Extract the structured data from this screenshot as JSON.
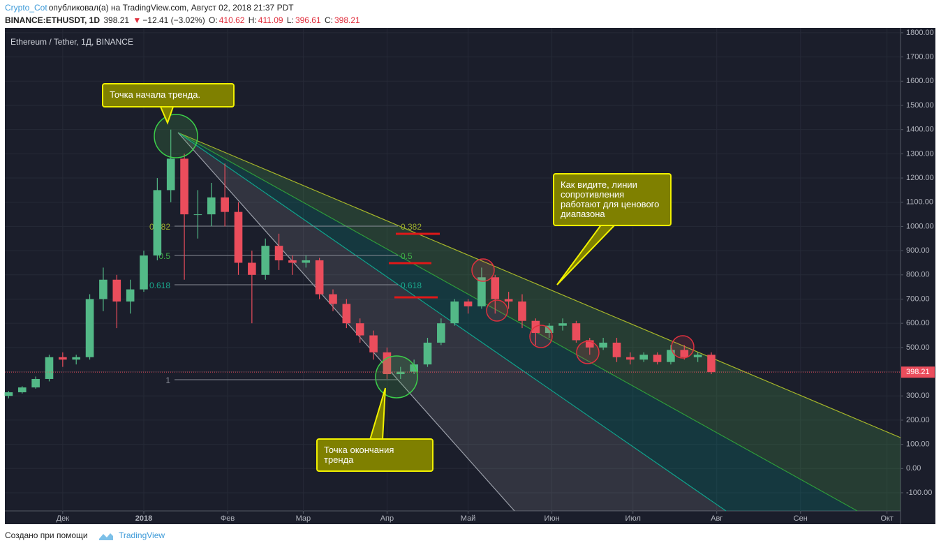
{
  "header": {
    "author": "Crypto_Cot",
    "published": "опубликовал(а) на TradingView.com, Август 02, 2018 21:37 PDT",
    "symbol": "BINANCE:ETHUSDT, 1D",
    "price": "398.21",
    "change": "−12.41 (−3.02%)",
    "ohlc": [
      {
        "label": "O:",
        "value": "410.62"
      },
      {
        "label": "H:",
        "value": "411.09"
      },
      {
        "label": "L:",
        "value": "396.61"
      },
      {
        "label": "C:",
        "value": "398.21"
      }
    ]
  },
  "chart_data": {
    "type": "candlestick",
    "title": "Ethereum / Tether, 1Д, BINANCE",
    "x": [
      -50,
      -45,
      -40,
      -35,
      -30,
      -25,
      -20,
      -15,
      -10,
      -5,
      0,
      5,
      10,
      15,
      20,
      25,
      30,
      35,
      40,
      45,
      50,
      55,
      60,
      65,
      70,
      75,
      80,
      85,
      90,
      95,
      100,
      105,
      110,
      115,
      120,
      125,
      130,
      135,
      140,
      145,
      150,
      155,
      160,
      165,
      170,
      175,
      180,
      185,
      190,
      195,
      200,
      205,
      210
    ],
    "open": [
      300,
      315,
      335,
      370,
      460,
      450,
      460,
      700,
      780,
      690,
      740,
      880,
      1150,
      1280,
      1050,
      1050,
      1120,
      1060,
      850,
      800,
      920,
      860,
      850,
      860,
      720,
      680,
      600,
      550,
      480,
      390,
      400,
      430,
      520,
      600,
      690,
      670,
      790,
      700,
      690,
      610,
      560,
      590,
      600,
      530,
      500,
      520,
      460,
      450,
      470,
      440,
      490,
      460,
      470
    ],
    "high": [
      320,
      340,
      380,
      470,
      480,
      470,
      720,
      830,
      800,
      780,
      900,
      1200,
      1400,
      1300,
      1150,
      1180,
      1260,
      1100,
      900,
      950,
      970,
      880,
      880,
      870,
      740,
      700,
      620,
      570,
      500,
      420,
      450,
      540,
      620,
      700,
      700,
      830,
      800,
      730,
      720,
      620,
      600,
      620,
      610,
      540,
      540,
      540,
      480,
      480,
      480,
      510,
      510,
      480,
      480
    ],
    "low": [
      290,
      310,
      330,
      360,
      420,
      430,
      450,
      650,
      580,
      640,
      730,
      860,
      1100,
      780,
      950,
      1000,
      1000,
      800,
      600,
      780,
      820,
      800,
      830,
      700,
      650,
      580,
      520,
      450,
      370,
      370,
      390,
      420,
      510,
      590,
      640,
      660,
      640,
      660,
      580,
      510,
      540,
      570,
      520,
      470,
      490,
      440,
      430,
      440,
      430,
      430,
      450,
      440,
      390
    ],
    "close": [
      315,
      335,
      370,
      460,
      450,
      460,
      700,
      780,
      690,
      740,
      880,
      1150,
      1280,
      1050,
      1050,
      1120,
      1060,
      850,
      800,
      920,
      860,
      850,
      860,
      720,
      680,
      600,
      550,
      480,
      390,
      400,
      430,
      520,
      600,
      690,
      670,
      790,
      700,
      690,
      610,
      560,
      590,
      600,
      530,
      500,
      520,
      460,
      450,
      470,
      440,
      490,
      460,
      470,
      398.21
    ],
    "up_color": "#53b987",
    "down_color": "#eb4d5c",
    "xlim": [
      -51.4,
      280
    ],
    "xticks": [
      {
        "value": -30,
        "label": "Дек"
      },
      {
        "value": 0,
        "label": "2018"
      },
      {
        "value": 31,
        "label": "Фев"
      },
      {
        "value": 59,
        "label": "Мар"
      },
      {
        "value": 90,
        "label": "Апр"
      },
      {
        "value": 120,
        "label": "Май"
      },
      {
        "value": 151,
        "label": "Июн"
      },
      {
        "value": 181,
        "label": "Июл"
      },
      {
        "value": 212,
        "label": "Авг"
      },
      {
        "value": 243,
        "label": "Сен"
      },
      {
        "value": 275,
        "label": "Окт"
      }
    ],
    "ylim": [
      -175,
      1820
    ],
    "yticks": [
      {
        "value": 1800,
        "label": "1800.00"
      },
      {
        "value": 1700,
        "label": "1700.00"
      },
      {
        "value": 1600,
        "label": "1600.00"
      },
      {
        "value": 1500,
        "label": "1500.00"
      },
      {
        "value": 1400,
        "label": "1400.00"
      },
      {
        "value": 1300,
        "label": "1300.00"
      },
      {
        "value": 1200,
        "label": "1200.00"
      },
      {
        "value": 1100,
        "label": "1100.00"
      },
      {
        "value": 1000,
        "label": "1000.00"
      },
      {
        "value": 900,
        "label": "900.00"
      },
      {
        "value": 800,
        "label": "800.00"
      },
      {
        "value": 700,
        "label": "700.00"
      },
      {
        "value": 600,
        "label": "600.00"
      },
      {
        "value": 500,
        "label": "500.00"
      },
      {
        "value": 400,
        "label": "400.00"
      },
      {
        "value": 300,
        "label": "300.00"
      },
      {
        "value": 200,
        "label": "200.00"
      },
      {
        "value": 100,
        "label": "100.00"
      },
      {
        "value": 0,
        "label": "0.00"
      },
      {
        "value": -100,
        "label": "-100.00"
      }
    ],
    "grid": true,
    "last_price": {
      "value": 398.21,
      "label": "398.21"
    },
    "fib_levels": [
      0.382,
      0.5,
      0.618,
      1
    ],
    "annotations": [
      "Точка начала тренда.",
      "Точка окончания тренда",
      "Как видите, линии сопротивления работают для ценового диапазона"
    ]
  },
  "footer": {
    "text": "Создано при помощи",
    "brand": "TradingView"
  }
}
